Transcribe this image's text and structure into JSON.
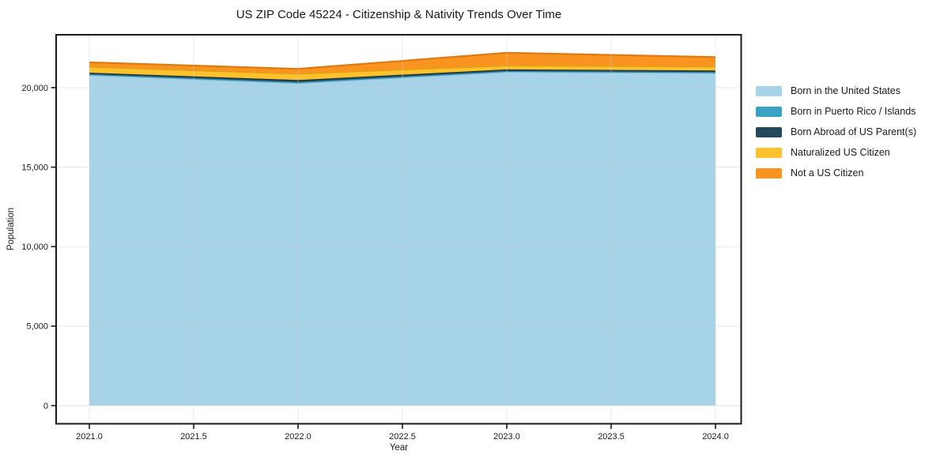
{
  "chart_data": {
    "type": "area",
    "stacked": true,
    "title": "US ZIP Code 45224 - Citizenship & Nativity Trends Over Time",
    "xlabel": "Year",
    "ylabel": "Population",
    "x": [
      2021,
      2022,
      2023,
      2024
    ],
    "xlim": [
      2020.841,
      2024.123
    ],
    "ylim": [
      -1141,
      23327
    ],
    "xtick_values": [
      2021.0,
      2021.5,
      2022.0,
      2022.5,
      2023.0,
      2023.5,
      2024.0
    ],
    "xtick_labels": [
      "2021.0",
      "2021.5",
      "2022.0",
      "2022.5",
      "2023.0",
      "2023.5",
      "2024.0"
    ],
    "ytick_values": [
      0,
      5000,
      10000,
      15000,
      20000
    ],
    "ytick_labels": [
      "0",
      "5,000",
      "10,000",
      "15,000",
      "20,000"
    ],
    "grid": true,
    "legend_position": "right",
    "series": [
      {
        "name": "Born in the United States",
        "color": "#a6d3e7",
        "edge": "#7cb9d6",
        "values": [
          20800,
          20290,
          21000,
          20930
        ]
      },
      {
        "name": "Born in Puerto Rico / Islands",
        "color": "#3aa2c2",
        "edge": "#2e84a0",
        "values": [
          50,
          60,
          50,
          50
        ]
      },
      {
        "name": "Born Abroad of US Parent(s)",
        "color": "#25495c",
        "edge": "#18323f",
        "values": [
          90,
          130,
          100,
          100
        ]
      },
      {
        "name": "Naturalized US Citizen",
        "color": "#fcc22d",
        "edge": "#dca313",
        "values": [
          370,
          400,
          250,
          250
        ]
      },
      {
        "name": "Not a US Citizen",
        "color": "#f8941f",
        "edge": "#df7a10",
        "values": [
          280,
          300,
          790,
          590
        ]
      }
    ],
    "axis_color": "#1a1a1a",
    "grid_color": "#cccccc"
  }
}
